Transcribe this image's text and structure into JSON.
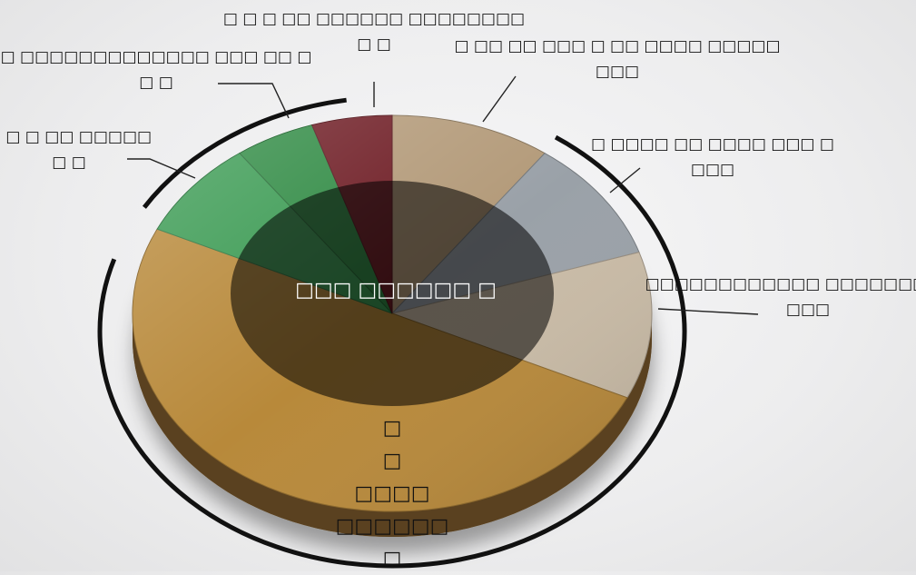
{
  "chart_data": {
    "type": "pie",
    "style": "3d-donut",
    "title": "",
    "center_label": "□□□ □□□□□□ □",
    "slices": [
      {
        "label": [
          "□",
          "□",
          "□□□□",
          "□□□□□□",
          "□"
        ],
        "value": 50,
        "color": "#b8893a"
      },
      {
        "label": [
          "□□□□□□□□□□□□ □□□□□□□□□□",
          "□□□"
        ],
        "value": 12,
        "color": "#c9bba6"
      },
      {
        "label": [
          "□ □□□□ □□ □□□□ □□□ □",
          "□□□"
        ],
        "value": 10,
        "color": "#9aa1a8"
      },
      {
        "label": [
          "□ □□ □□ □□□ □ □□ □□□□ □□□□□",
          "□□□"
        ],
        "value": 10,
        "color": "#b39a79"
      },
      {
        "label": [
          "□ □ □ □□ □□□□□□ □□□□□□□□",
          "□ □"
        ],
        "value": 5,
        "color": "#6e1c24"
      },
      {
        "label": [
          "□ □□□□□□□□□□□□□ □□□ □□ □",
          "□ □"
        ],
        "value": 5,
        "color": "#2f8a43"
      },
      {
        "label": [
          "□ □ □ □□ □□□□□",
          "□ □"
        ],
        "value": 8,
        "color": "#3a9a52"
      }
    ],
    "grouping_brackets": 2
  }
}
